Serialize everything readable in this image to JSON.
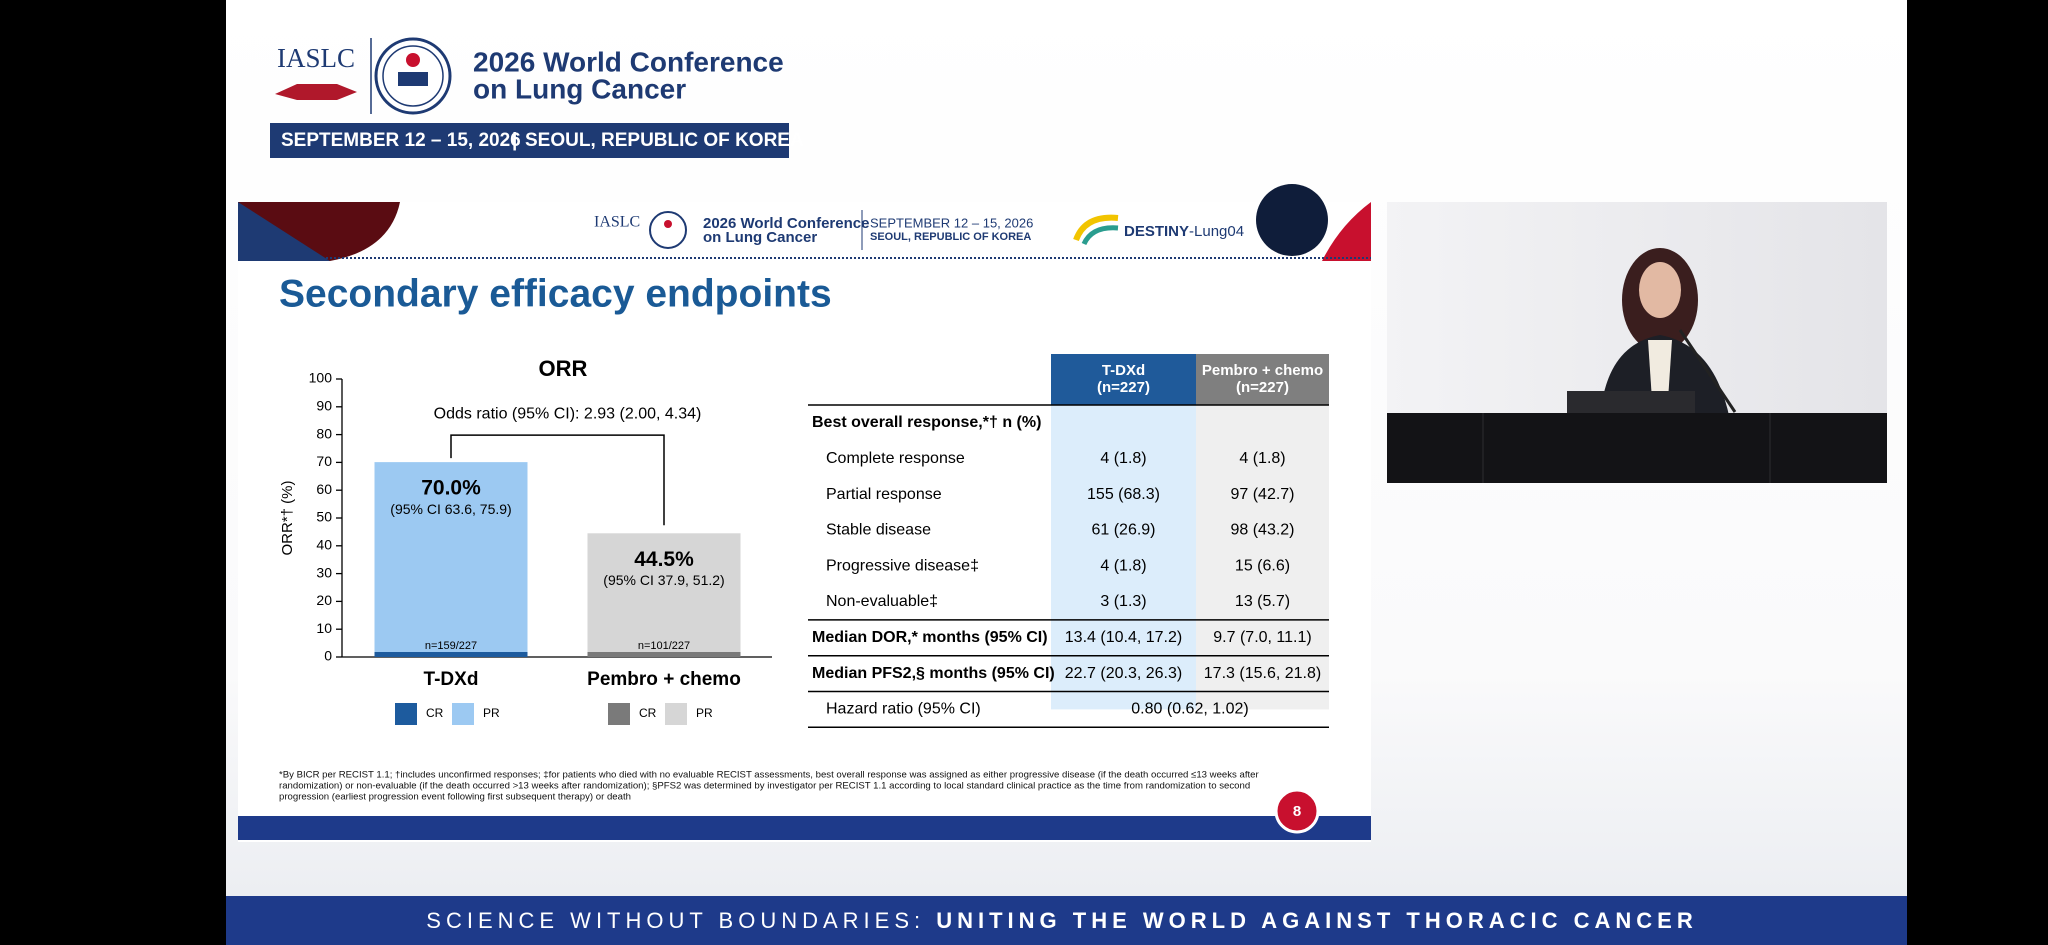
{
  "header": {
    "org": "IASLC",
    "conference": [
      "2026 World Conference",
      "on Lung Cancer"
    ],
    "dates": "SEPTEMBER 12 – 15, 2026",
    "separator": "|",
    "location": "SEOUL, REPUBLIC OF KOREA"
  },
  "slide": {
    "header": {
      "org": "IASLC",
      "conference": [
        "2026 World Conference",
        "on Lung Cancer"
      ],
      "dates": "SEPTEMBER 12 – 15, 2026",
      "location": "SEOUL, REPUBLIC OF KOREA",
      "trial": [
        "DESTINY",
        "-Lung04"
      ]
    },
    "title": "Secondary efficacy endpoints",
    "footnote": [
      "*By BICR per RECIST 1.1; †includes unconfirmed responses; ‡for patients who died with no evaluable RECIST assessments, best overall response was assigned as either progressive disease (if the death occurred ≤13 weeks after",
      "randomization) or non-evaluable (if the death occurred >13 weeks after randomization); §PFS2 was determined by investigator per RECIST 1.1 according to local standard clinical practice as the time from randomization to second",
      "progression (earliest progression event following first subsequent therapy) or death"
    ],
    "page_number": "8"
  },
  "chart_data": {
    "type": "bar",
    "stacked": true,
    "title": "ORR",
    "y_label": "ORR*† (%)",
    "categories": [
      "T-DXd",
      "Pembro + chemo"
    ],
    "series": [
      {
        "name": "CR",
        "colors": [
          "#1d5b9e",
          "#7a7a7a"
        ],
        "values": [
          1.8,
          1.8
        ]
      },
      {
        "name": "PR",
        "colors": [
          "#9cc9f2",
          "#d6d6d6"
        ],
        "values": [
          68.3,
          42.7
        ]
      }
    ],
    "ylim": [
      0,
      100
    ],
    "yticks": [
      0,
      10,
      20,
      30,
      40,
      50,
      60,
      70,
      80,
      90,
      100
    ],
    "total_labels": [
      "70.0%",
      "44.5%"
    ],
    "ci_labels": [
      "(95% CI 63.6, 75.9)",
      "(95% CI 37.9, 51.2)"
    ],
    "n_labels": [
      "n=159/227",
      "n=101/227"
    ],
    "annotation": "Odds ratio (95% CI): 2.93 (2.00, 4.34)"
  },
  "table": {
    "columns": [
      [
        "T-DXd",
        "(n=227)"
      ],
      [
        "Pembro + chemo",
        "(n=227)"
      ]
    ],
    "section": "Best overall response,*† n (%)",
    "rows": [
      [
        "Complete response",
        "4 (1.8)",
        "4 (1.8)"
      ],
      [
        "Partial response",
        "155 (68.3)",
        "97 (42.7)"
      ],
      [
        "Stable disease",
        "61 (26.9)",
        "98 (43.2)"
      ],
      [
        "Progressive disease‡",
        "4 (1.8)",
        "15 (6.6)"
      ],
      [
        "Non-evaluable‡",
        "3 (1.3)",
        "13 (5.7)"
      ]
    ],
    "summary_rows": [
      [
        "Median DOR,* months (95% CI)",
        "13.4 (10.4, 17.2)",
        "9.7 (7.0, 11.1)"
      ],
      [
        "Median PFS2,§ months (95% CI)",
        "22.7 (20.3, 26.3)",
        "17.3 (15.6, 21.8)"
      ]
    ],
    "hazard": [
      "Hazard ratio (95% CI)",
      "0.80 (0.62, 1.02)"
    ]
  },
  "banner": {
    "lead": "SCIENCE WITHOUT BOUNDARIES: ",
    "emphasis": "UNITING THE WORLD AGAINST THORACIC CANCER"
  }
}
